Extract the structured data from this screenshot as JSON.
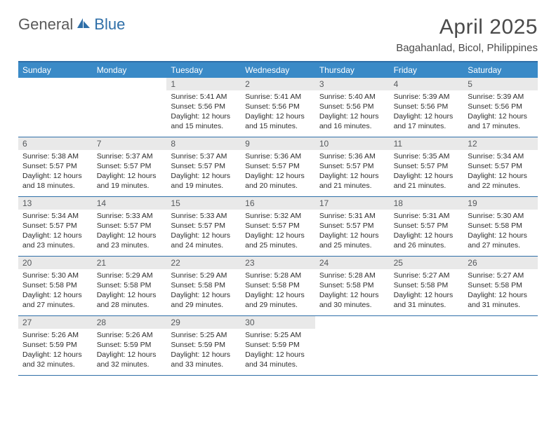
{
  "brand": {
    "part1": "General",
    "part2": "Blue"
  },
  "title": "April 2025",
  "location": "Bagahanlad, Bicol, Philippines",
  "colors": {
    "header_bg": "#3a8ac7",
    "border": "#2f6fa8",
    "daynum_bg": "#e9e9e9",
    "text": "#2d2d2d",
    "title_text": "#4a4a4a"
  },
  "day_labels": [
    "Sunday",
    "Monday",
    "Tuesday",
    "Wednesday",
    "Thursday",
    "Friday",
    "Saturday"
  ],
  "weeks": [
    [
      null,
      null,
      {
        "n": "1",
        "sunrise": "Sunrise: 5:41 AM",
        "sunset": "Sunset: 5:56 PM",
        "day1": "Daylight: 12 hours",
        "day2": "and 15 minutes."
      },
      {
        "n": "2",
        "sunrise": "Sunrise: 5:41 AM",
        "sunset": "Sunset: 5:56 PM",
        "day1": "Daylight: 12 hours",
        "day2": "and 15 minutes."
      },
      {
        "n": "3",
        "sunrise": "Sunrise: 5:40 AM",
        "sunset": "Sunset: 5:56 PM",
        "day1": "Daylight: 12 hours",
        "day2": "and 16 minutes."
      },
      {
        "n": "4",
        "sunrise": "Sunrise: 5:39 AM",
        "sunset": "Sunset: 5:56 PM",
        "day1": "Daylight: 12 hours",
        "day2": "and 17 minutes."
      },
      {
        "n": "5",
        "sunrise": "Sunrise: 5:39 AM",
        "sunset": "Sunset: 5:56 PM",
        "day1": "Daylight: 12 hours",
        "day2": "and 17 minutes."
      }
    ],
    [
      {
        "n": "6",
        "sunrise": "Sunrise: 5:38 AM",
        "sunset": "Sunset: 5:57 PM",
        "day1": "Daylight: 12 hours",
        "day2": "and 18 minutes."
      },
      {
        "n": "7",
        "sunrise": "Sunrise: 5:37 AM",
        "sunset": "Sunset: 5:57 PM",
        "day1": "Daylight: 12 hours",
        "day2": "and 19 minutes."
      },
      {
        "n": "8",
        "sunrise": "Sunrise: 5:37 AM",
        "sunset": "Sunset: 5:57 PM",
        "day1": "Daylight: 12 hours",
        "day2": "and 19 minutes."
      },
      {
        "n": "9",
        "sunrise": "Sunrise: 5:36 AM",
        "sunset": "Sunset: 5:57 PM",
        "day1": "Daylight: 12 hours",
        "day2": "and 20 minutes."
      },
      {
        "n": "10",
        "sunrise": "Sunrise: 5:36 AM",
        "sunset": "Sunset: 5:57 PM",
        "day1": "Daylight: 12 hours",
        "day2": "and 21 minutes."
      },
      {
        "n": "11",
        "sunrise": "Sunrise: 5:35 AM",
        "sunset": "Sunset: 5:57 PM",
        "day1": "Daylight: 12 hours",
        "day2": "and 21 minutes."
      },
      {
        "n": "12",
        "sunrise": "Sunrise: 5:34 AM",
        "sunset": "Sunset: 5:57 PM",
        "day1": "Daylight: 12 hours",
        "day2": "and 22 minutes."
      }
    ],
    [
      {
        "n": "13",
        "sunrise": "Sunrise: 5:34 AM",
        "sunset": "Sunset: 5:57 PM",
        "day1": "Daylight: 12 hours",
        "day2": "and 23 minutes."
      },
      {
        "n": "14",
        "sunrise": "Sunrise: 5:33 AM",
        "sunset": "Sunset: 5:57 PM",
        "day1": "Daylight: 12 hours",
        "day2": "and 23 minutes."
      },
      {
        "n": "15",
        "sunrise": "Sunrise: 5:33 AM",
        "sunset": "Sunset: 5:57 PM",
        "day1": "Daylight: 12 hours",
        "day2": "and 24 minutes."
      },
      {
        "n": "16",
        "sunrise": "Sunrise: 5:32 AM",
        "sunset": "Sunset: 5:57 PM",
        "day1": "Daylight: 12 hours",
        "day2": "and 25 minutes."
      },
      {
        "n": "17",
        "sunrise": "Sunrise: 5:31 AM",
        "sunset": "Sunset: 5:57 PM",
        "day1": "Daylight: 12 hours",
        "day2": "and 25 minutes."
      },
      {
        "n": "18",
        "sunrise": "Sunrise: 5:31 AM",
        "sunset": "Sunset: 5:57 PM",
        "day1": "Daylight: 12 hours",
        "day2": "and 26 minutes."
      },
      {
        "n": "19",
        "sunrise": "Sunrise: 5:30 AM",
        "sunset": "Sunset: 5:58 PM",
        "day1": "Daylight: 12 hours",
        "day2": "and 27 minutes."
      }
    ],
    [
      {
        "n": "20",
        "sunrise": "Sunrise: 5:30 AM",
        "sunset": "Sunset: 5:58 PM",
        "day1": "Daylight: 12 hours",
        "day2": "and 27 minutes."
      },
      {
        "n": "21",
        "sunrise": "Sunrise: 5:29 AM",
        "sunset": "Sunset: 5:58 PM",
        "day1": "Daylight: 12 hours",
        "day2": "and 28 minutes."
      },
      {
        "n": "22",
        "sunrise": "Sunrise: 5:29 AM",
        "sunset": "Sunset: 5:58 PM",
        "day1": "Daylight: 12 hours",
        "day2": "and 29 minutes."
      },
      {
        "n": "23",
        "sunrise": "Sunrise: 5:28 AM",
        "sunset": "Sunset: 5:58 PM",
        "day1": "Daylight: 12 hours",
        "day2": "and 29 minutes."
      },
      {
        "n": "24",
        "sunrise": "Sunrise: 5:28 AM",
        "sunset": "Sunset: 5:58 PM",
        "day1": "Daylight: 12 hours",
        "day2": "and 30 minutes."
      },
      {
        "n": "25",
        "sunrise": "Sunrise: 5:27 AM",
        "sunset": "Sunset: 5:58 PM",
        "day1": "Daylight: 12 hours",
        "day2": "and 31 minutes."
      },
      {
        "n": "26",
        "sunrise": "Sunrise: 5:27 AM",
        "sunset": "Sunset: 5:58 PM",
        "day1": "Daylight: 12 hours",
        "day2": "and 31 minutes."
      }
    ],
    [
      {
        "n": "27",
        "sunrise": "Sunrise: 5:26 AM",
        "sunset": "Sunset: 5:59 PM",
        "day1": "Daylight: 12 hours",
        "day2": "and 32 minutes."
      },
      {
        "n": "28",
        "sunrise": "Sunrise: 5:26 AM",
        "sunset": "Sunset: 5:59 PM",
        "day1": "Daylight: 12 hours",
        "day2": "and 32 minutes."
      },
      {
        "n": "29",
        "sunrise": "Sunrise: 5:25 AM",
        "sunset": "Sunset: 5:59 PM",
        "day1": "Daylight: 12 hours",
        "day2": "and 33 minutes."
      },
      {
        "n": "30",
        "sunrise": "Sunrise: 5:25 AM",
        "sunset": "Sunset: 5:59 PM",
        "day1": "Daylight: 12 hours",
        "day2": "and 34 minutes."
      },
      null,
      null,
      null
    ]
  ]
}
